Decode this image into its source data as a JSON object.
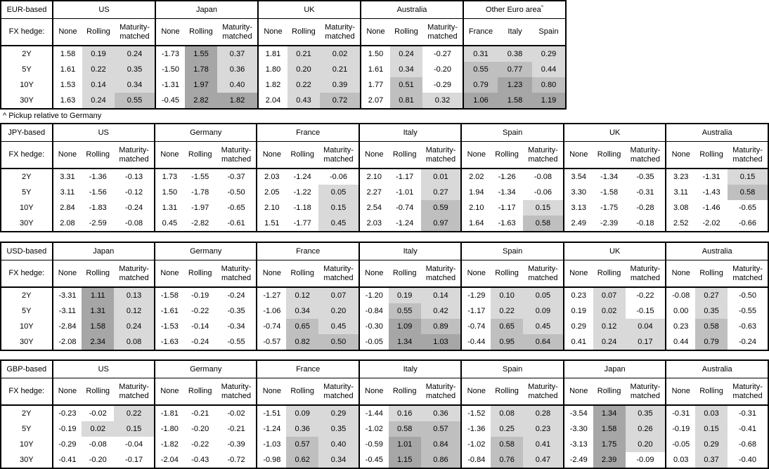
{
  "note": "^ Pickup relative to Germany",
  "fx_hedge_label": "FX hedge:",
  "row_labels": [
    "2Y",
    "5Y",
    "10Y",
    "30Y"
  ],
  "default_subcols": [
    "None",
    "Rolling",
    "Maturity-matched"
  ],
  "shading_colors": {
    "negative": "#FFFFFF",
    "low": "#D9D9D9",
    "mid": "#BFBFBF",
    "high": "#A6A6A6"
  },
  "shading_thresholds": {
    "low_min": 0,
    "mid_min": 0.5,
    "high_min": 1
  },
  "chart_data": [
    {
      "type": "table",
      "id": "eur",
      "base_label": "EUR-based",
      "note_after": "^ Pickup relative to Germany",
      "groups": [
        {
          "name": "US",
          "values": [
            [
              "1.58",
              "0.19",
              "0.24"
            ],
            [
              "1.61",
              "0.22",
              "0.35"
            ],
            [
              "1.53",
              "0.14",
              "0.34"
            ],
            [
              "1.63",
              "0.24",
              "0.55"
            ]
          ]
        },
        {
          "name": "Japan",
          "values": [
            [
              "-1.73",
              "1.55",
              "0.37"
            ],
            [
              "-1.50",
              "1.78",
              "0.36"
            ],
            [
              "-1.31",
              "1.97",
              "0.40"
            ],
            [
              "-0.45",
              "2.82",
              "1.82"
            ]
          ]
        },
        {
          "name": "UK",
          "values": [
            [
              "1.81",
              "0.21",
              "0.02"
            ],
            [
              "1.80",
              "0.20",
              "0.21"
            ],
            [
              "1.82",
              "0.22",
              "0.39"
            ],
            [
              "2.04",
              "0.43",
              "0.72"
            ]
          ]
        },
        {
          "name": "Australia",
          "values": [
            [
              "1.50",
              "0.24",
              "-0.27"
            ],
            [
              "1.61",
              "0.34",
              "-0.20"
            ],
            [
              "1.77",
              "0.51",
              "-0.29"
            ],
            [
              "2.07",
              "0.81",
              "0.32"
            ]
          ]
        },
        {
          "name": "Other Euro area",
          "sup": "^",
          "all_shaded": true,
          "subcols": [
            "France",
            "Italy",
            "Spain"
          ],
          "values": [
            [
              "0.31",
              "0.38",
              "0.29"
            ],
            [
              "0.55",
              "0.77",
              "0.44"
            ],
            [
              "0.79",
              "1.23",
              "0.80"
            ],
            [
              "1.06",
              "1.58",
              "1.19"
            ]
          ]
        }
      ]
    },
    {
      "type": "table",
      "id": "jpy",
      "base_label": "JPY-based",
      "groups": [
        {
          "name": "US",
          "values": [
            [
              "3.31",
              "-1.36",
              "-0.13"
            ],
            [
              "3.11",
              "-1.56",
              "-0.12"
            ],
            [
              "2.84",
              "-1.83",
              "-0.24"
            ],
            [
              "2.08",
              "-2.59",
              "-0.08"
            ]
          ]
        },
        {
          "name": "Germany",
          "values": [
            [
              "1.73",
              "-1.55",
              "-0.37"
            ],
            [
              "1.50",
              "-1.78",
              "-0.50"
            ],
            [
              "1.31",
              "-1.97",
              "-0.65"
            ],
            [
              "0.45",
              "-2.82",
              "-0.61"
            ]
          ]
        },
        {
          "name": "France",
          "values": [
            [
              "2.03",
              "-1.24",
              "-0.06"
            ],
            [
              "2.05",
              "-1.22",
              "0.05"
            ],
            [
              "2.10",
              "-1.18",
              "0.15"
            ],
            [
              "1.51",
              "-1.77",
              "0.45"
            ]
          ]
        },
        {
          "name": "Italy",
          "values": [
            [
              "2.10",
              "-1.17",
              "0.01"
            ],
            [
              "2.27",
              "-1.01",
              "0.27"
            ],
            [
              "2.54",
              "-0.74",
              "0.59"
            ],
            [
              "2.03",
              "-1.24",
              "0.97"
            ]
          ]
        },
        {
          "name": "Spain",
          "values": [
            [
              "2.02",
              "-1.26",
              "-0.08"
            ],
            [
              "1.94",
              "-1.34",
              "-0.06"
            ],
            [
              "2.10",
              "-1.17",
              "0.15"
            ],
            [
              "1.64",
              "-1.63",
              "0.58"
            ]
          ]
        },
        {
          "name": "UK",
          "values": [
            [
              "3.54",
              "-1.34",
              "-0.35"
            ],
            [
              "3.30",
              "-1.58",
              "-0.31"
            ],
            [
              "3.13",
              "-1.75",
              "-0.28"
            ],
            [
              "2.49",
              "-2.39",
              "-0.18"
            ]
          ]
        },
        {
          "name": "Australia",
          "values": [
            [
              "3.23",
              "-1.31",
              "0.15"
            ],
            [
              "3.11",
              "-1.43",
              "0.58"
            ],
            [
              "3.08",
              "-1.46",
              "-0.65"
            ],
            [
              "2.52",
              "-2.02",
              "-0.66"
            ]
          ]
        }
      ]
    },
    {
      "type": "table",
      "id": "usd",
      "base_label": "USD-based",
      "groups": [
        {
          "name": "Japan",
          "values": [
            [
              "-3.31",
              "1.11",
              "0.13"
            ],
            [
              "-3.11",
              "1.31",
              "0.12"
            ],
            [
              "-2.84",
              "1.58",
              "0.24"
            ],
            [
              "-2.08",
              "2.34",
              "0.08"
            ]
          ]
        },
        {
          "name": "Germany",
          "values": [
            [
              "-1.58",
              "-0.19",
              "-0.24"
            ],
            [
              "-1.61",
              "-0.22",
              "-0.35"
            ],
            [
              "-1.53",
              "-0.14",
              "-0.34"
            ],
            [
              "-1.63",
              "-0.24",
              "-0.55"
            ]
          ]
        },
        {
          "name": "France",
          "values": [
            [
              "-1.27",
              "0.12",
              "0.07"
            ],
            [
              "-1.06",
              "0.34",
              "0.20"
            ],
            [
              "-0.74",
              "0.65",
              "0.45"
            ],
            [
              "-0.57",
              "0.82",
              "0.50"
            ]
          ]
        },
        {
          "name": "Italy",
          "values": [
            [
              "-1.20",
              "0.19",
              "0.14"
            ],
            [
              "-0.84",
              "0.55",
              "0.42"
            ],
            [
              "-0.30",
              "1.09",
              "0.89"
            ],
            [
              "-0.05",
              "1.34",
              "1.03"
            ]
          ]
        },
        {
          "name": "Spain",
          "values": [
            [
              "-1.29",
              "0.10",
              "0.05"
            ],
            [
              "-1.17",
              "0.22",
              "0.09"
            ],
            [
              "-0.74",
              "0.65",
              "0.45"
            ],
            [
              "-0.44",
              "0.95",
              "0.64"
            ]
          ]
        },
        {
          "name": "UK",
          "values": [
            [
              "0.23",
              "0.07",
              "-0.22"
            ],
            [
              "0.19",
              "0.02",
              "-0.15"
            ],
            [
              "0.29",
              "0.12",
              "0.04"
            ],
            [
              "0.41",
              "0.24",
              "0.17"
            ]
          ]
        },
        {
          "name": "Australia",
          "values": [
            [
              "-0.08",
              "0.27",
              "-0.50"
            ],
            [
              "0.00",
              "0.35",
              "-0.55"
            ],
            [
              "0.23",
              "0.58",
              "-0.63"
            ],
            [
              "0.44",
              "0.79",
              "-0.24"
            ]
          ]
        }
      ]
    },
    {
      "type": "table",
      "id": "gbp",
      "base_label": "GBP-based",
      "groups": [
        {
          "name": "US",
          "values": [
            [
              "-0.23",
              "-0.02",
              "0.22"
            ],
            [
              "-0.19",
              "0.02",
              "0.15"
            ],
            [
              "-0.29",
              "-0.08",
              "-0.04"
            ],
            [
              "-0.41",
              "-0.20",
              "-0.17"
            ]
          ]
        },
        {
          "name": "Germany",
          "values": [
            [
              "-1.81",
              "-0.21",
              "-0.02"
            ],
            [
              "-1.80",
              "-0.20",
              "-0.21"
            ],
            [
              "-1.82",
              "-0.22",
              "-0.39"
            ],
            [
              "-2.04",
              "-0.43",
              "-0.72"
            ]
          ]
        },
        {
          "name": "France",
          "values": [
            [
              "-1.51",
              "0.09",
              "0.29"
            ],
            [
              "-1.24",
              "0.36",
              "0.35"
            ],
            [
              "-1.03",
              "0.57",
              "0.40"
            ],
            [
              "-0.98",
              "0.62",
              "0.34"
            ]
          ]
        },
        {
          "name": "Italy",
          "values": [
            [
              "-1.44",
              "0.16",
              "0.36"
            ],
            [
              "-1.02",
              "0.58",
              "0.57"
            ],
            [
              "-0.59",
              "1.01",
              "0.84"
            ],
            [
              "-0.45",
              "1.15",
              "0.86"
            ]
          ]
        },
        {
          "name": "Spain",
          "values": [
            [
              "-1.52",
              "0.08",
              "0.28"
            ],
            [
              "-1.36",
              "0.25",
              "0.23"
            ],
            [
              "-1.02",
              "0.58",
              "0.41"
            ],
            [
              "-0.84",
              "0.76",
              "0.47"
            ]
          ]
        },
        {
          "name": "Japan",
          "values": [
            [
              "-3.54",
              "1.34",
              "0.35"
            ],
            [
              "-3.30",
              "1.58",
              "0.26"
            ],
            [
              "-3.13",
              "1.75",
              "0.20"
            ],
            [
              "-2.49",
              "2.39",
              "-0.09"
            ]
          ]
        },
        {
          "name": "Australia",
          "values": [
            [
              "-0.31",
              "0.03",
              "-0.31"
            ],
            [
              "-0.19",
              "0.15",
              "-0.41"
            ],
            [
              "-0.05",
              "0.29",
              "-0.68"
            ],
            [
              "0.03",
              "0.37",
              "-0.40"
            ]
          ]
        }
      ]
    }
  ]
}
